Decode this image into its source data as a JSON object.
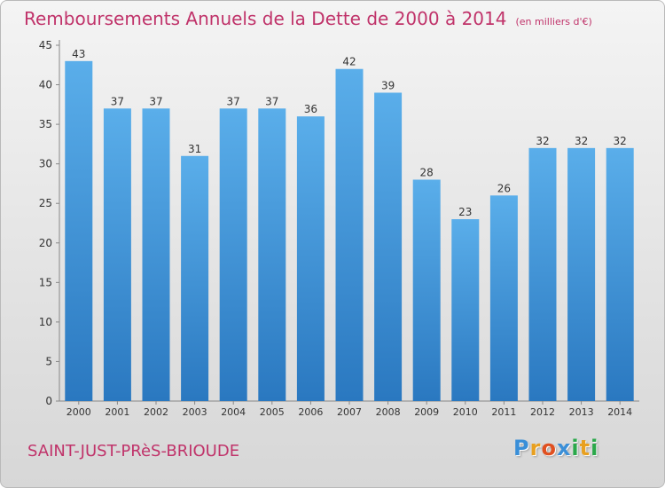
{
  "header": {
    "title": "Remboursements Annuels de la Dette de 2000 à 2014",
    "unit": "(en milliers d'€)"
  },
  "footer": {
    "commune": "SAINT-JUST-PRèS-BRIOUDE",
    "logo_letters": [
      "P",
      "r",
      "o",
      "x",
      "i",
      "t",
      "i"
    ],
    "logo_colors": [
      "#3a8fd8",
      "#e8a020",
      "#e05020",
      "#3a8fd8",
      "#2aa84a",
      "#e8a020",
      "#2aa84a"
    ]
  },
  "colors": {
    "bar_top": "#5aaeea",
    "bar_bottom": "#2a78c0",
    "title": "#c0336a"
  },
  "chart_data": {
    "type": "bar",
    "title": "Remboursements Annuels de la Dette de 2000 à 2014",
    "xlabel": "",
    "ylabel": "",
    "ylim": [
      0,
      45
    ],
    "yticks": [
      0,
      5,
      10,
      15,
      20,
      25,
      30,
      35,
      40,
      45
    ],
    "grid": false,
    "categories": [
      "2000",
      "2001",
      "2002",
      "2003",
      "2004",
      "2005",
      "2006",
      "2007",
      "2008",
      "2009",
      "2010",
      "2011",
      "2012",
      "2013",
      "2014"
    ],
    "values": [
      43,
      37,
      37,
      31,
      37,
      37,
      36,
      42,
      39,
      28,
      23,
      26,
      32,
      32,
      32
    ]
  }
}
